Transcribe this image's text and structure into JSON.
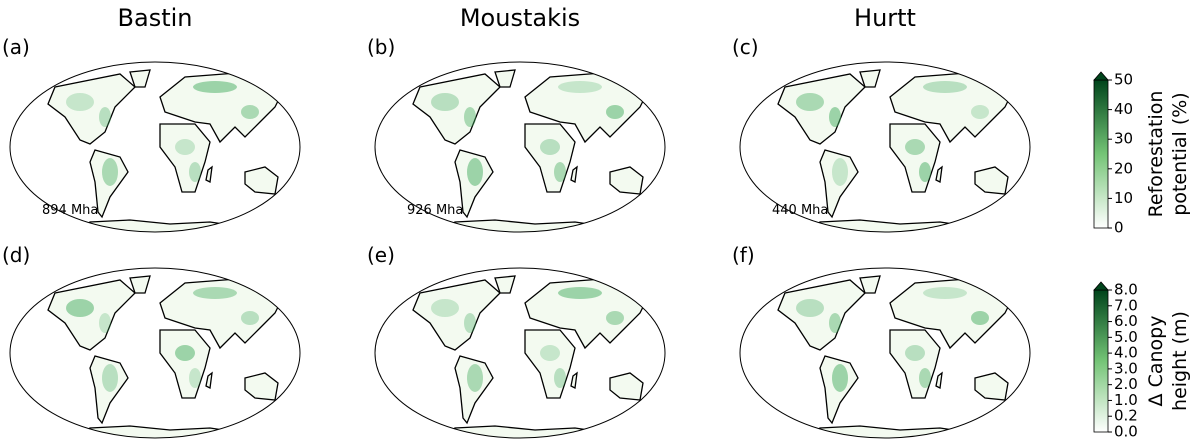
{
  "columns": [
    "Bastin",
    "Moustakis",
    "Hurtt"
  ],
  "panels": [
    {
      "label": "(a)",
      "area": "894 Mha"
    },
    {
      "label": "(b)",
      "area": "926 Mha"
    },
    {
      "label": "(c)",
      "area": "440 Mha"
    },
    {
      "label": "(d)"
    },
    {
      "label": "(e)"
    },
    {
      "label": "(f)"
    }
  ],
  "colorbars": [
    {
      "label": [
        "Reforestation",
        "potential (%)"
      ],
      "range": [
        0,
        50
      ],
      "ticks": [
        0,
        10,
        20,
        30,
        40,
        50
      ]
    },
    {
      "label": [
        "Δ Canopy",
        "height (m)"
      ],
      "ticks": [
        {
          "value": 0,
          "label": "0.0"
        },
        {
          "value": 0.2,
          "label": "0.2"
        },
        {
          "value": 1,
          "label": "1.0"
        },
        {
          "value": 2,
          "label": "2.0"
        },
        {
          "value": 3,
          "label": "3.0"
        },
        {
          "value": 4,
          "label": "4.0"
        },
        {
          "value": 5,
          "label": "5.0"
        },
        {
          "value": 6,
          "label": "6.0"
        },
        {
          "value": 7,
          "label": "7.0"
        },
        {
          "value": 8,
          "label": "8.0"
        }
      ]
    }
  ]
}
